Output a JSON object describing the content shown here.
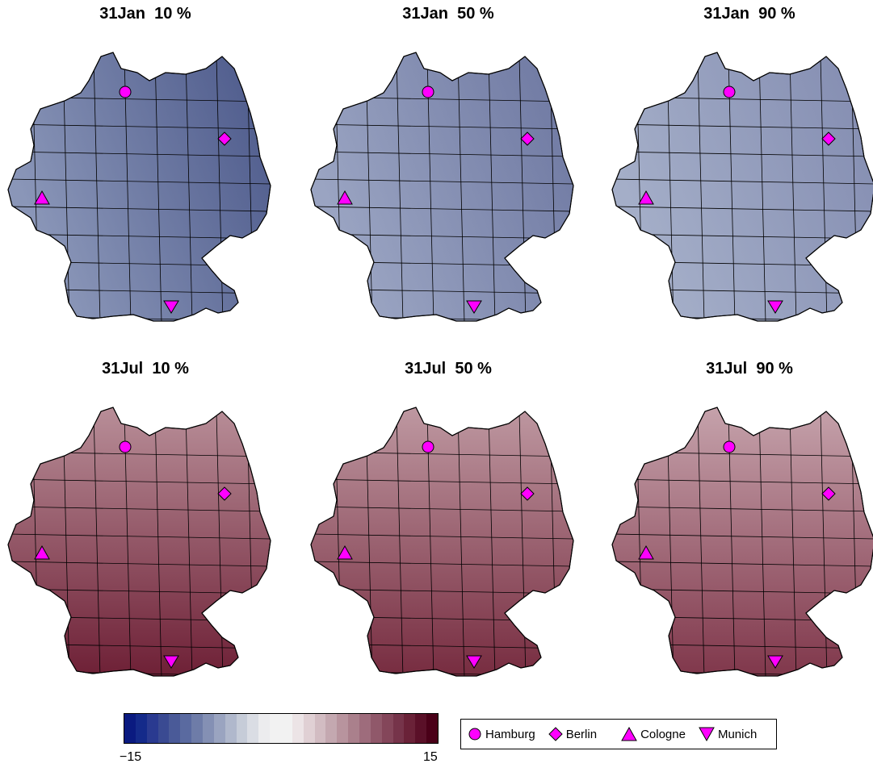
{
  "panels": [
    {
      "title": "31Jan  10 %",
      "season": "jan",
      "shade": 0.0
    },
    {
      "title": "31Jan  50 %",
      "season": "jan",
      "shade": 0.45
    },
    {
      "title": "31Jan  90 %",
      "season": "jan",
      "shade": 0.75
    },
    {
      "title": "31Jul  10 %",
      "season": "jul",
      "shade": 0.0
    },
    {
      "title": "31Jul  50 %",
      "season": "jul",
      "shade": 0.3
    },
    {
      "title": "31Jul  90 %",
      "season": "jul",
      "shade": 0.6
    }
  ],
  "colorbar": {
    "min_label": "−15",
    "max_label": "15",
    "min": -15,
    "max": 15
  },
  "legend": [
    {
      "label": "Hamburg",
      "marker": "circle"
    },
    {
      "label": "Berlin",
      "marker": "diamond"
    },
    {
      "label": "Cologne",
      "marker": "triangle-up"
    },
    {
      "label": "Munich",
      "marker": "triangle-down"
    }
  ],
  "colors": {
    "marker": "#ff00ff",
    "cold": "#1a2a80",
    "warm": "#6a0f2a"
  }
}
